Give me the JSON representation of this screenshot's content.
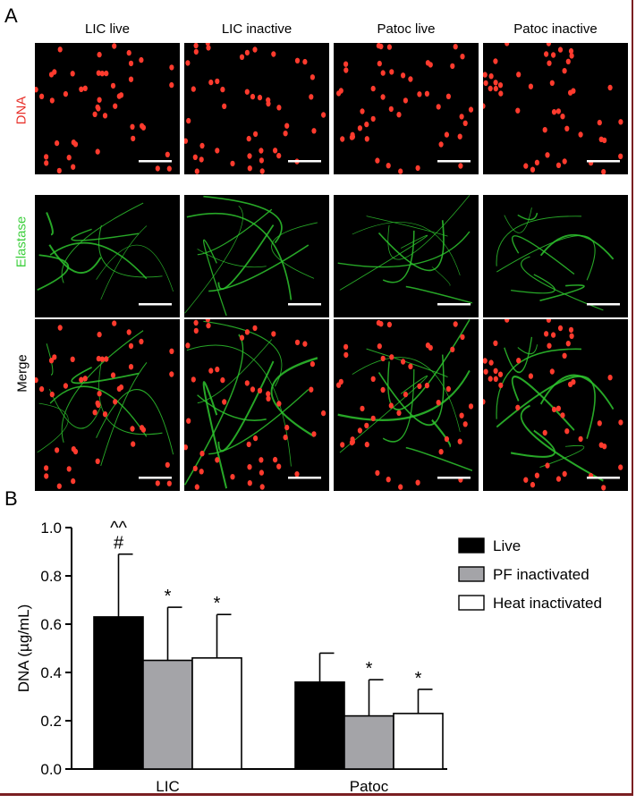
{
  "panel_a": {
    "letter": "A",
    "columns": [
      "LIC live",
      "LIC inactive",
      "Patoc live",
      "Patoc inactive"
    ],
    "rows": [
      {
        "label": "DNA",
        "color": "#e8302a",
        "channel": "red"
      },
      {
        "label": "Elastase",
        "color": "#3ccf3c",
        "channel": "green"
      },
      {
        "label": "Merge",
        "color": "#000000",
        "channel": "merge"
      }
    ],
    "icons": [
      "fluorescence-micrograph"
    ]
  },
  "panel_b": {
    "letter": "B"
  },
  "chart_data": {
    "type": "bar",
    "categories": [
      "LIC",
      "Patoc"
    ],
    "ylabel": "DNA (µg/mL)",
    "xlabel": "",
    "ylim": [
      0,
      1.0
    ],
    "yticks": [
      "0.0",
      "0.2",
      "0.4",
      "0.6",
      "0.8",
      "1.0"
    ],
    "grid": false,
    "legend_position": "top-right",
    "series": [
      {
        "name": "Live",
        "color": "#000000",
        "values": [
          0.63,
          0.36
        ],
        "errors": [
          0.26,
          0.12
        ],
        "annotations": [
          "^^\n#",
          ""
        ]
      },
      {
        "name": "PF inactivated",
        "color": "#a4a4a8",
        "values": [
          0.45,
          0.22
        ],
        "errors": [
          0.22,
          0.15
        ],
        "annotations": [
          "*",
          "*"
        ]
      },
      {
        "name": "Heat inactivated",
        "color": "#ffffff",
        "values": [
          0.46,
          0.23
        ],
        "errors": [
          0.18,
          0.1
        ],
        "annotations": [
          "*",
          "*"
        ]
      }
    ]
  },
  "colors": {
    "frame": "#7a1f22",
    "dna": "#e8302a",
    "elastase": "#3ccf3c"
  }
}
